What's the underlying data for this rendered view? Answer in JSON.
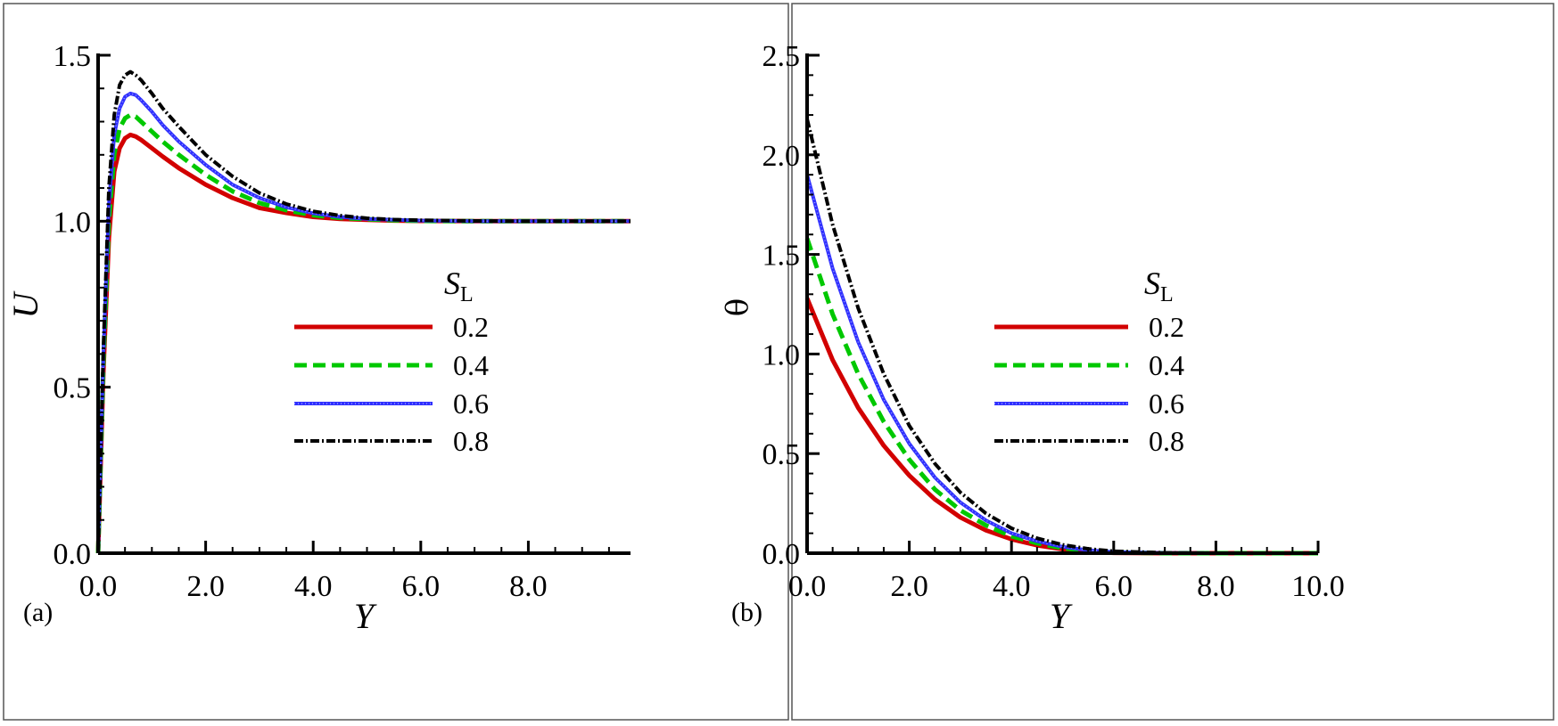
{
  "colors": {
    "s02": "#d20000",
    "s04": "#00c800",
    "s06": "#3030ff",
    "s08": "#000000"
  },
  "chart_data": [
    {
      "type": "line",
      "panel_label": "(a)",
      "xlabel": "Y",
      "ylabel": "U",
      "xlim": [
        0,
        9.9
      ],
      "ylim": [
        0,
        1.5
      ],
      "xticks": [
        0,
        2,
        4,
        6,
        8
      ],
      "xtick_labels": [
        "0.0",
        "2.0",
        "4.0",
        "6.0",
        "8.0"
      ],
      "yticks": [
        0,
        0.5,
        1.0,
        1.5
      ],
      "ytick_labels": [
        "0.0",
        "0.5",
        "1.0",
        "1.5"
      ],
      "legend": {
        "title": "S",
        "title_sub": "L",
        "placement": "center-right"
      },
      "series": [
        {
          "name": "0.2",
          "style": "solid",
          "x": [
            0,
            0.1,
            0.2,
            0.3,
            0.4,
            0.5,
            0.6,
            0.7,
            0.8,
            1.0,
            1.2,
            1.5,
            2.0,
            2.5,
            3.0,
            3.5,
            4.0,
            4.5,
            5.0,
            5.5,
            6.0,
            7.0,
            8.0,
            9.0,
            9.9
          ],
          "values": [
            0,
            0.55,
            0.95,
            1.15,
            1.22,
            1.25,
            1.26,
            1.255,
            1.245,
            1.22,
            1.195,
            1.16,
            1.11,
            1.07,
            1.04,
            1.025,
            1.013,
            1.007,
            1.004,
            1.002,
            1.001,
            1.0,
            1.0,
            1.0,
            1.0
          ]
        },
        {
          "name": "0.4",
          "style": "dashed",
          "x": [
            0,
            0.1,
            0.2,
            0.3,
            0.4,
            0.5,
            0.6,
            0.7,
            0.8,
            1.0,
            1.2,
            1.5,
            2.0,
            2.5,
            3.0,
            3.5,
            4.0,
            4.5,
            5.0,
            5.5,
            6.0,
            7.0,
            8.0,
            9.0,
            9.9
          ],
          "values": [
            0,
            0.58,
            1.0,
            1.2,
            1.28,
            1.31,
            1.32,
            1.315,
            1.3,
            1.27,
            1.24,
            1.2,
            1.14,
            1.09,
            1.055,
            1.033,
            1.018,
            1.01,
            1.006,
            1.003,
            1.001,
            1.0,
            1.0,
            1.0,
            1.0
          ]
        },
        {
          "name": "0.6",
          "style": "dotted-line",
          "x": [
            0,
            0.1,
            0.2,
            0.3,
            0.4,
            0.5,
            0.6,
            0.7,
            0.8,
            1.0,
            1.2,
            1.5,
            2.0,
            2.5,
            3.0,
            3.5,
            4.0,
            4.5,
            5.0,
            5.5,
            6.0,
            7.0,
            8.0,
            9.0,
            9.9
          ],
          "values": [
            0,
            0.6,
            1.05,
            1.26,
            1.34,
            1.375,
            1.385,
            1.38,
            1.365,
            1.33,
            1.29,
            1.24,
            1.17,
            1.11,
            1.07,
            1.042,
            1.024,
            1.013,
            1.007,
            1.004,
            1.002,
            1.0,
            1.0,
            1.0,
            1.0
          ]
        },
        {
          "name": "0.8",
          "style": "dash-dot",
          "x": [
            0,
            0.1,
            0.2,
            0.3,
            0.4,
            0.5,
            0.6,
            0.7,
            0.8,
            1.0,
            1.2,
            1.5,
            2.0,
            2.5,
            3.0,
            3.5,
            4.0,
            4.5,
            5.0,
            5.5,
            6.0,
            7.0,
            8.0,
            9.0,
            9.9
          ],
          "values": [
            0,
            0.62,
            1.1,
            1.32,
            1.41,
            1.44,
            1.45,
            1.44,
            1.425,
            1.385,
            1.34,
            1.285,
            1.2,
            1.135,
            1.085,
            1.052,
            1.03,
            1.017,
            1.009,
            1.005,
            1.003,
            1.001,
            1.0,
            1.0,
            1.0
          ]
        }
      ]
    },
    {
      "type": "line",
      "panel_label": "(b)",
      "xlabel": "Y",
      "ylabel": "θ",
      "xlim": [
        0,
        10
      ],
      "ylim": [
        0,
        2.5
      ],
      "xticks": [
        0,
        2,
        4,
        6,
        8,
        10
      ],
      "xtick_labels": [
        "0.0",
        "2.0",
        "4.0",
        "6.0",
        "8.0",
        "10.0"
      ],
      "yticks": [
        0,
        0.5,
        1.0,
        1.5,
        2.0,
        2.5
      ],
      "ytick_labels": [
        "0.0",
        "0.5",
        "1.0",
        "1.5",
        "2.0",
        "2.5"
      ],
      "legend": {
        "title": "S",
        "title_sub": "L",
        "placement": "center-right"
      },
      "series": [
        {
          "name": "0.2",
          "style": "solid",
          "x": [
            0,
            0.5,
            1.0,
            1.5,
            2.0,
            2.5,
            3.0,
            3.5,
            4.0,
            4.5,
            5.0,
            5.5,
            6.0,
            7.0,
            8.0,
            9.0,
            10.0
          ],
          "values": [
            1.28,
            0.97,
            0.73,
            0.54,
            0.39,
            0.27,
            0.18,
            0.115,
            0.07,
            0.04,
            0.02,
            0.008,
            0.002,
            0,
            0,
            0,
            0
          ]
        },
        {
          "name": "0.4",
          "style": "dashed",
          "x": [
            0,
            0.5,
            1.0,
            1.5,
            2.0,
            2.5,
            3.0,
            3.5,
            4.0,
            4.5,
            5.0,
            5.5,
            6.0,
            7.0,
            8.0,
            9.0,
            10.0
          ],
          "values": [
            1.58,
            1.2,
            0.9,
            0.66,
            0.47,
            0.32,
            0.215,
            0.14,
            0.085,
            0.05,
            0.025,
            0.011,
            0.004,
            0,
            0,
            0,
            0
          ]
        },
        {
          "name": "0.6",
          "style": "dotted-line",
          "x": [
            0,
            0.5,
            1.0,
            1.5,
            2.0,
            2.5,
            3.0,
            3.5,
            4.0,
            4.5,
            5.0,
            5.5,
            6.0,
            7.0,
            8.0,
            9.0,
            10.0
          ],
          "values": [
            1.9,
            1.43,
            1.06,
            0.77,
            0.55,
            0.38,
            0.255,
            0.165,
            0.1,
            0.06,
            0.032,
            0.015,
            0.006,
            0.001,
            0,
            0,
            0
          ]
        },
        {
          "name": "0.8",
          "style": "dash-dot",
          "x": [
            0,
            0.5,
            1.0,
            1.5,
            2.0,
            2.5,
            3.0,
            3.5,
            4.0,
            4.5,
            5.0,
            5.5,
            6.0,
            7.0,
            8.0,
            9.0,
            10.0
          ],
          "values": [
            2.18,
            1.65,
            1.23,
            0.9,
            0.64,
            0.45,
            0.305,
            0.2,
            0.125,
            0.075,
            0.042,
            0.022,
            0.01,
            0.002,
            0,
            0,
            0
          ]
        }
      ]
    }
  ]
}
